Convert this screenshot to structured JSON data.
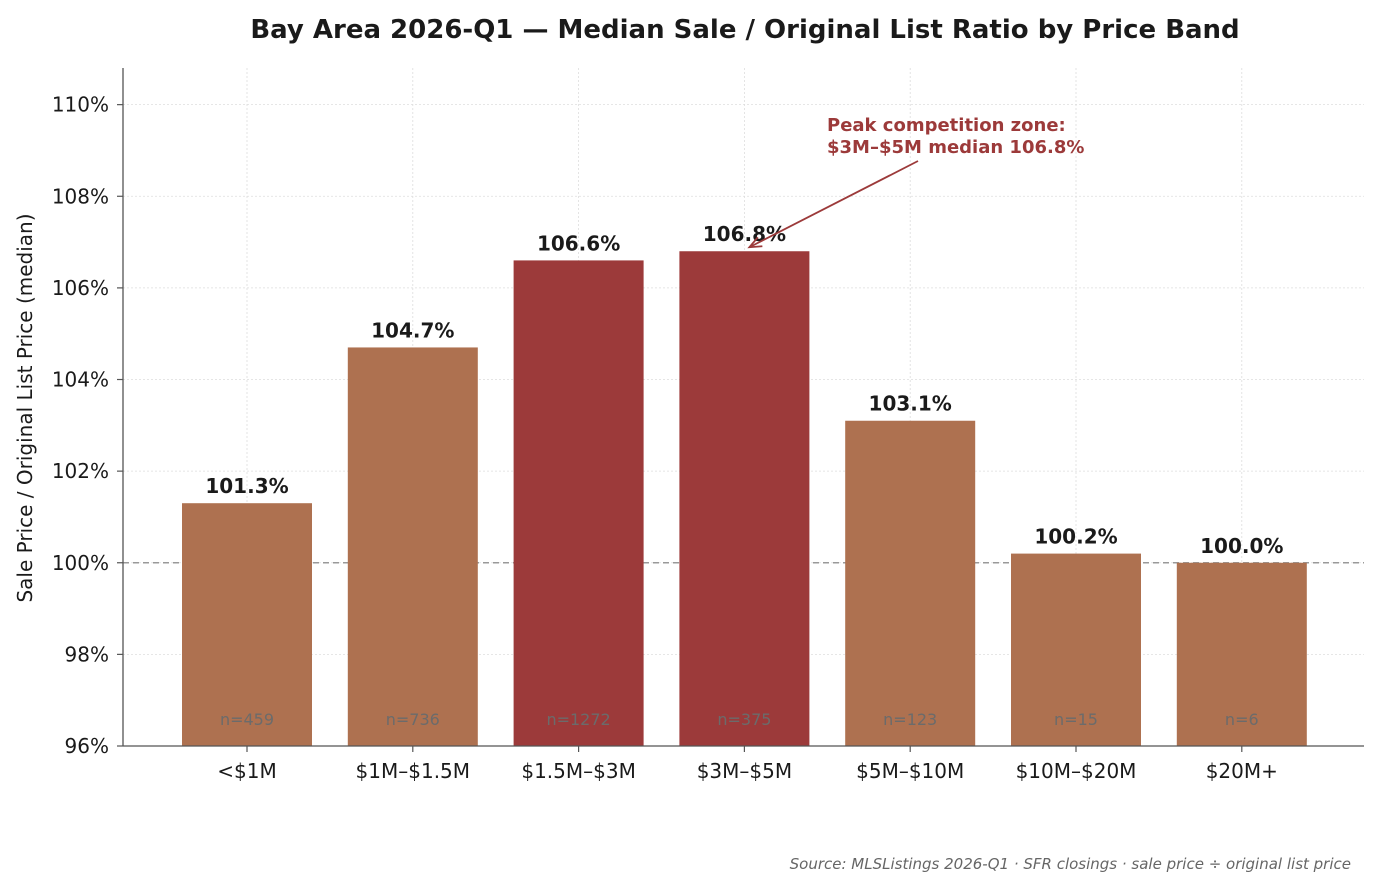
{
  "colors": {
    "bar_default": "#ae7150",
    "bar_highlight": "#9c3a3a",
    "annotation": "#9c3a3a",
    "grid": "#dddddd",
    "reference_line": "#999999",
    "axis": "#555555"
  },
  "chart_data": {
    "type": "bar",
    "title": "Bay Area 2026-Q1 — Median Sale / Original List Ratio by Price Band",
    "xlabel": "",
    "ylabel": "Sale Price / Original List Price (median)",
    "categories": [
      "<$1M",
      "$1M–$1.5M",
      "$1.5M–$3M",
      "$3M–$5M",
      "$5M–$10M",
      "$10M–$20M",
      "$20M+"
    ],
    "values": [
      101.3,
      104.7,
      106.6,
      106.8,
      103.1,
      100.2,
      100.0
    ],
    "value_labels": [
      "101.3%",
      "104.7%",
      "106.6%",
      "106.8%",
      "103.1%",
      "100.2%",
      "100.0%"
    ],
    "sample_labels": [
      "n=459",
      "n=736",
      "n=1272",
      "n=375",
      "n=123",
      "n=15",
      "n=6"
    ],
    "highlighted": [
      false,
      false,
      true,
      true,
      false,
      false,
      false
    ],
    "ylim": [
      96,
      110.8
    ],
    "yticks": [
      96,
      98,
      100,
      102,
      104,
      106,
      108,
      110
    ],
    "ytick_labels": [
      "96%",
      "98%",
      "100%",
      "102%",
      "104%",
      "106%",
      "108%",
      "110%"
    ],
    "reference_line": 100,
    "grid": true,
    "annotation": {
      "lines": [
        "Peak competition zone:",
        "$3M–$5M median 106.8%"
      ],
      "target_category": "$3M–$5M",
      "target_value": 106.8
    },
    "source": "Source: MLSListings 2026-Q1 · SFR closings · sale price ÷ original list price"
  }
}
